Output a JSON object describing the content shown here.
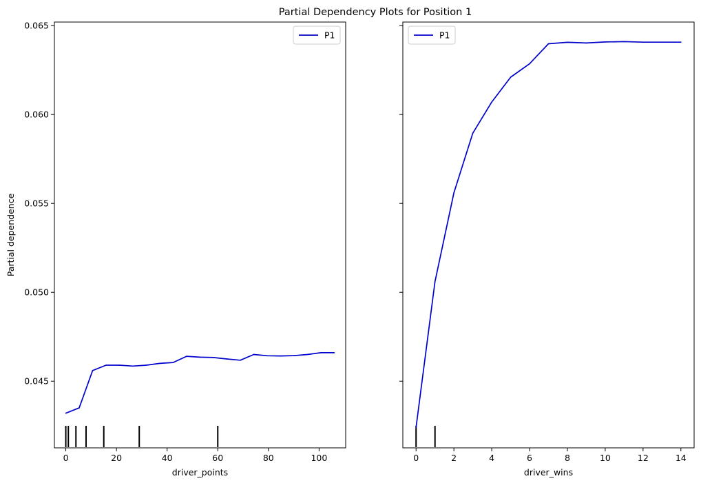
{
  "figure": {
    "title": "Partial Dependency Plots for Position 1",
    "ylabel": "Partial dependence"
  },
  "colors": {
    "line": "#0000cc",
    "rug": "#000000",
    "axes": "#000000",
    "legend_border": "#cccccc"
  },
  "chart_data": [
    {
      "type": "line",
      "title": "",
      "xlabel": "driver_points",
      "ylabel": "Partial dependence",
      "xlim": [
        -4.5,
        110.5
      ],
      "ylim": [
        0.04125,
        0.0652
      ],
      "xticks": [
        0,
        20,
        40,
        60,
        80,
        100
      ],
      "xtick_labels": [
        "0",
        "20",
        "40",
        "60",
        "80",
        "100"
      ],
      "yticks": [
        0.045,
        0.05,
        0.055,
        0.06,
        0.065
      ],
      "ytick_labels": [
        "0.045",
        "0.050",
        "0.055",
        "0.060",
        "0.065"
      ],
      "legend": "top-right",
      "grid": false,
      "series": [
        {
          "name": "P1",
          "x": [
            0,
            5.3,
            10.6,
            15.9,
            21.2,
            26.5,
            31.8,
            37.1,
            42.4,
            47.7,
            53.0,
            58.3,
            63.6,
            68.9,
            74.2,
            79.5,
            84.8,
            90.1,
            95.4,
            100.7,
            106.0
          ],
          "y": [
            0.0432,
            0.0435,
            0.0456,
            0.0459,
            0.0459,
            0.04585,
            0.0459,
            0.046,
            0.04605,
            0.0464,
            0.04635,
            0.04633,
            0.04625,
            0.04618,
            0.0465,
            0.04643,
            0.04642,
            0.04644,
            0.0465,
            0.0466,
            0.0466
          ]
        }
      ],
      "rug": [
        0,
        1,
        4,
        8,
        15,
        29,
        60
      ]
    },
    {
      "type": "line",
      "title": "",
      "xlabel": "driver_wins",
      "ylabel": "",
      "xlim": [
        -0.7,
        14.7
      ],
      "ylim": [
        0.04125,
        0.0652
      ],
      "xticks": [
        0,
        2,
        4,
        6,
        8,
        10,
        12,
        14
      ],
      "xtick_labels": [
        "0",
        "2",
        "4",
        "6",
        "8",
        "10",
        "12",
        "14"
      ],
      "yticks": [
        0.045,
        0.05,
        0.055,
        0.06,
        0.065
      ],
      "ytick_labels": [
        "",
        "",
        "",
        "",
        ""
      ],
      "legend": "top-left",
      "grid": false,
      "series": [
        {
          "name": "P1",
          "x": [
            0,
            1,
            2,
            3,
            4,
            5,
            6,
            7,
            8,
            9,
            10,
            11,
            12,
            13,
            14
          ],
          "y": [
            0.0424,
            0.0506,
            0.0556,
            0.05895,
            0.0607,
            0.0621,
            0.06285,
            0.06398,
            0.06406,
            0.06402,
            0.06408,
            0.0641,
            0.06407,
            0.06407,
            0.06407
          ]
        }
      ],
      "rug": [
        0,
        1
      ]
    }
  ]
}
